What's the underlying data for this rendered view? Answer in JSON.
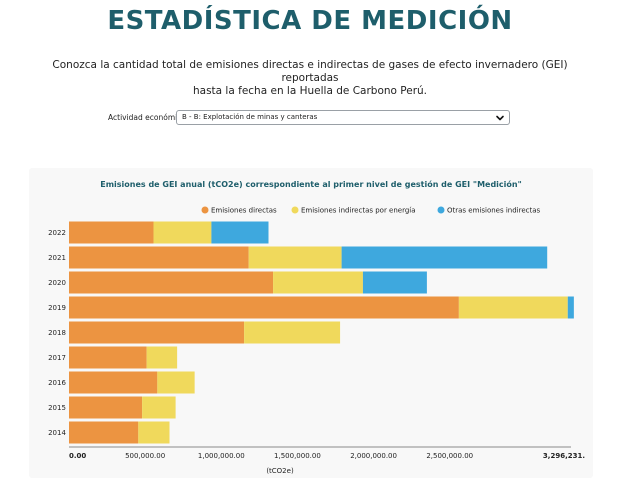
{
  "header": {
    "title": "ESTADÍSTICA DE MEDICIÓN",
    "intro_line1": "Conozca la cantidad total de emisiones directas e indirectas de gases de efecto invernadero (GEI) reportadas",
    "intro_line2": "hasta la fecha en la Huella de Carbono Perú."
  },
  "filter": {
    "label": "Actividad económica",
    "selected": "B - B: Explotación de minas y canteras",
    "icon": "chevron-down-icon"
  },
  "chart_data": {
    "type": "bar",
    "orientation": "horizontal",
    "stacked": true,
    "title": "Emisiones de GEI anual (tCO2e) correspondiente al primer nivel de gestión de GEI \"Medición\"",
    "xlabel": "(tCO2e)",
    "ylabel": "",
    "categories": [
      "2022",
      "2021",
      "2020",
      "2019",
      "2018",
      "2017",
      "2016",
      "2015",
      "2014"
    ],
    "series": [
      {
        "name": "Emisiones directas",
        "color": "#ec9441",
        "values": [
          555000,
          1180000,
          1340000,
          2560000,
          1150000,
          510000,
          580000,
          480000,
          455000
        ]
      },
      {
        "name": "Emisiones indirectas por energía",
        "color": "#f0d95c",
        "values": [
          380000,
          610000,
          590000,
          715000,
          630000,
          200000,
          245000,
          220000,
          205000
        ]
      },
      {
        "name": "Otras emisiones indirectas",
        "color": "#3ea8de",
        "values": [
          375000,
          1350000,
          420000,
          40000,
          0,
          0,
          0,
          0,
          0
        ]
      }
    ],
    "xlim": [
      0,
      3296231
    ],
    "xticks": [
      "0.00",
      "500,000.00",
      "1,000,000.00",
      "1,500,000.00",
      "2,000,000.00",
      "2,500,000.00",
      "3,296,231."
    ],
    "xtick_values": [
      0,
      500000,
      1000000,
      1500000,
      2000000,
      2500000,
      3296231
    ],
    "legend_position": "top-right",
    "grid": false
  }
}
